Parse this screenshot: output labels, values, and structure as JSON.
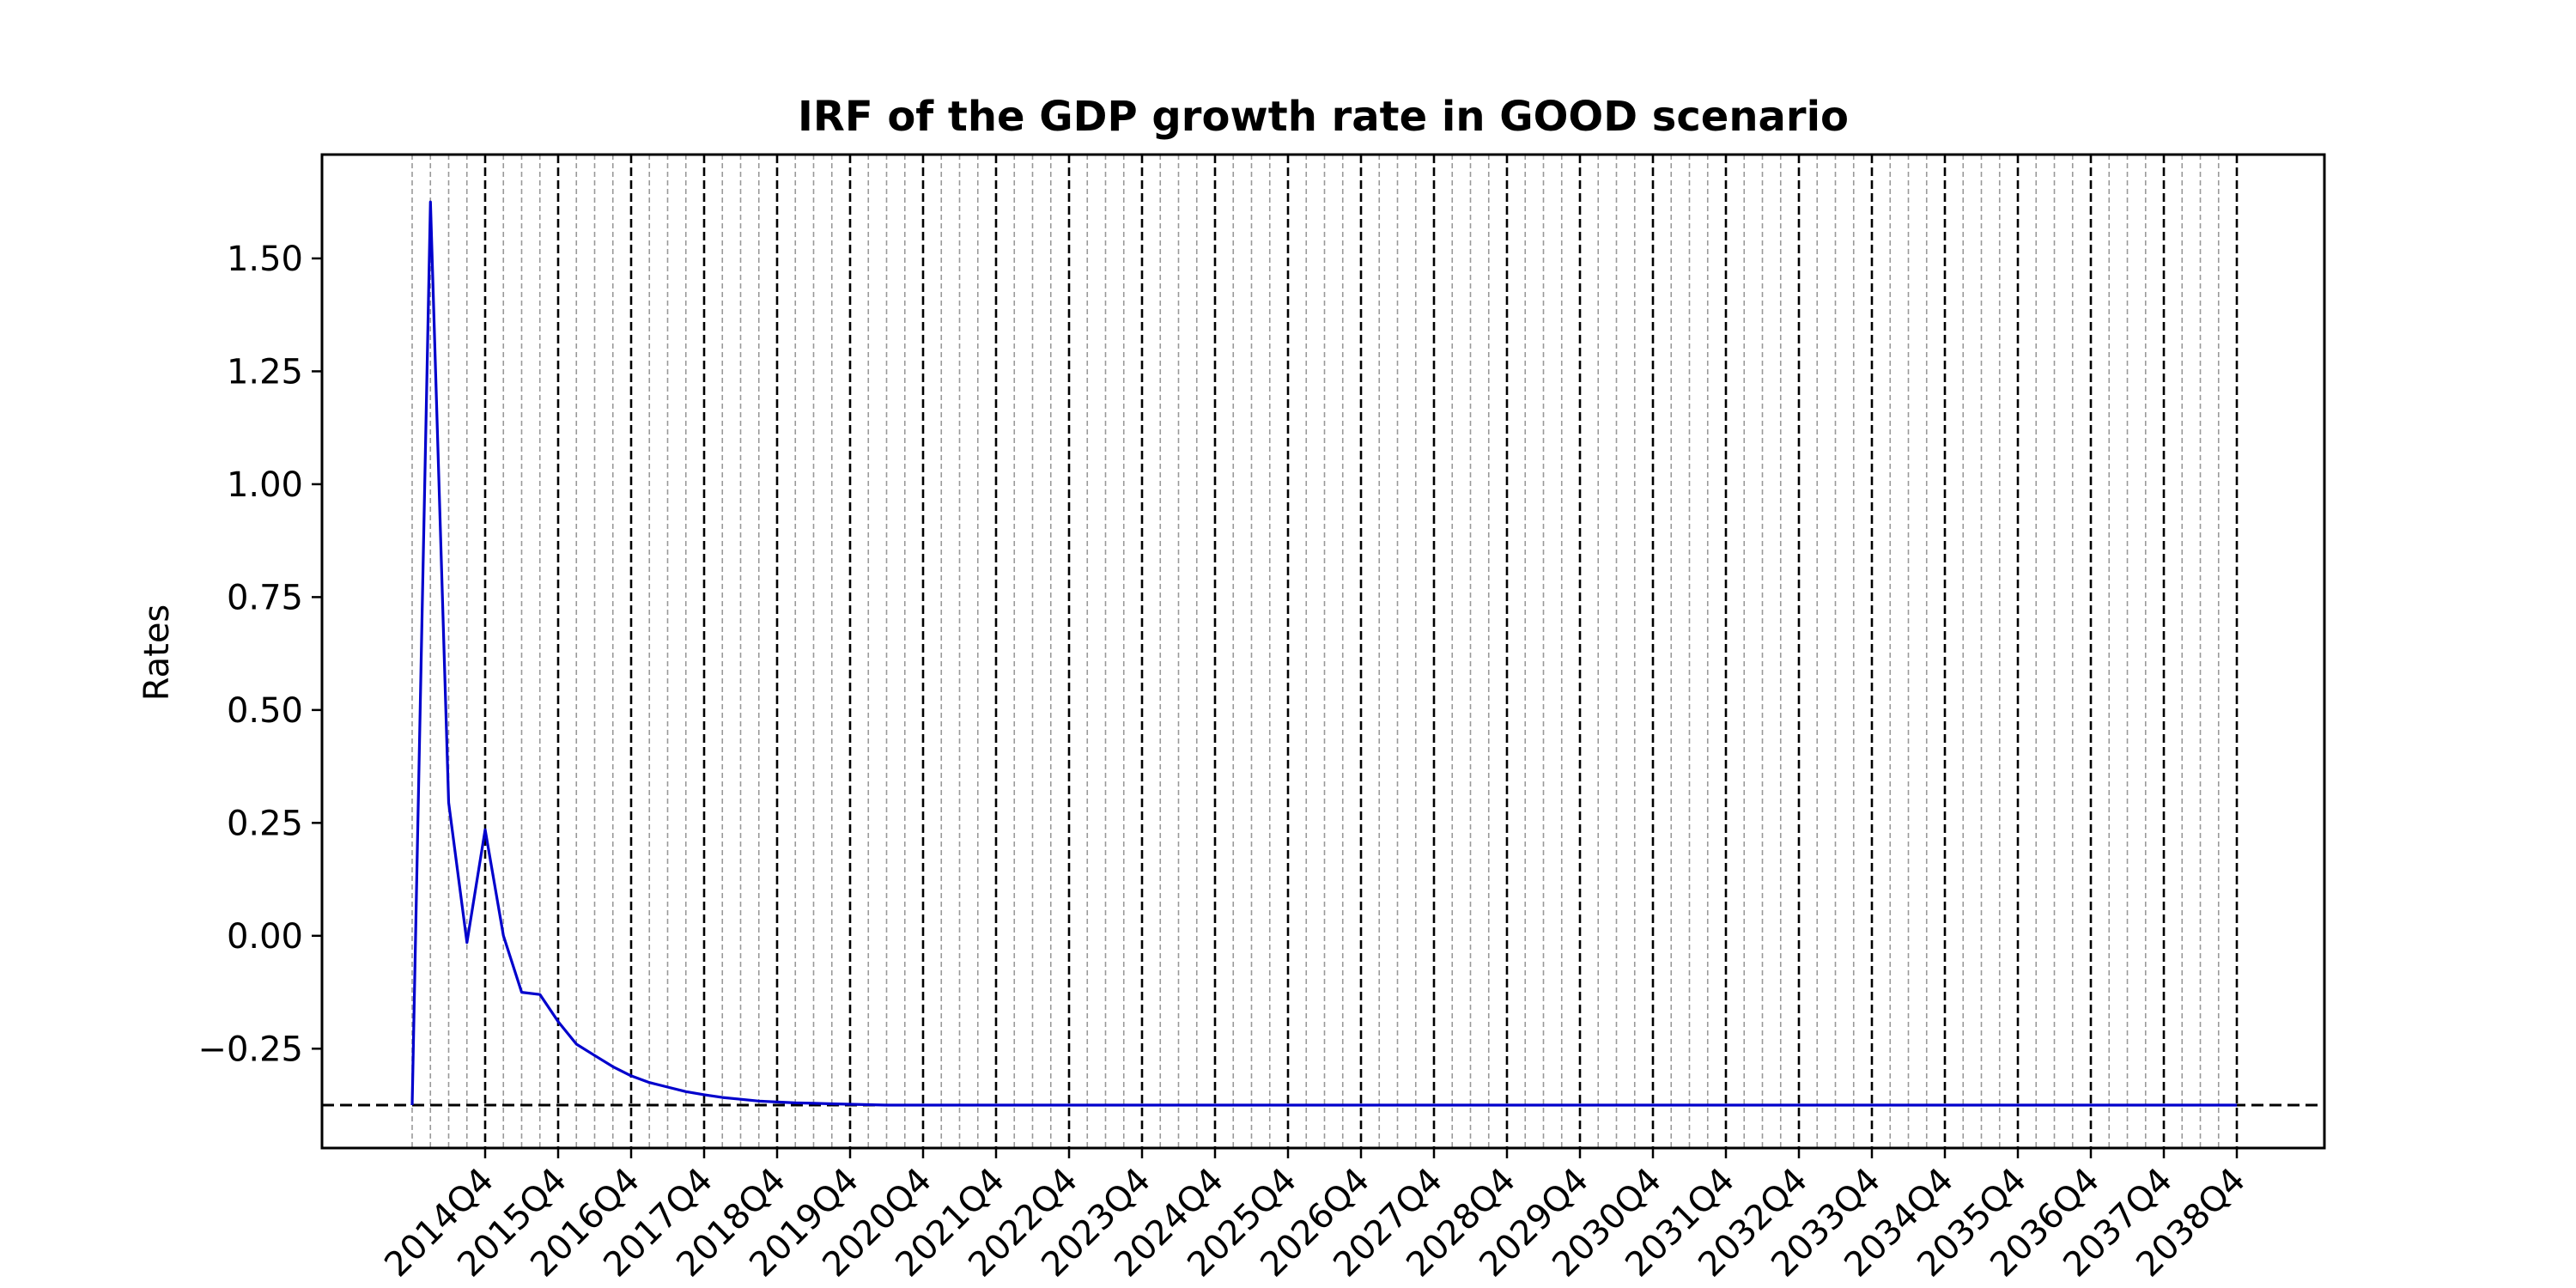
{
  "chart_data": {
    "type": "line",
    "title": "IRF of the GDP growth rate in GOOD scenario",
    "xlabel": "",
    "ylabel": "Rates",
    "x_start": "2013Q4",
    "x_end": "2038Q4",
    "xtick_labels": [
      "2014Q4",
      "2015Q4",
      "2016Q4",
      "2017Q4",
      "2018Q4",
      "2019Q4",
      "2020Q4",
      "2021Q4",
      "2022Q4",
      "2023Q4",
      "2024Q4",
      "2025Q4",
      "2026Q4",
      "2027Q4",
      "2028Q4",
      "2029Q4",
      "2030Q4",
      "2031Q4",
      "2032Q4",
      "2033Q4",
      "2034Q4",
      "2035Q4",
      "2036Q4",
      "2037Q4",
      "2038Q4"
    ],
    "ytick_labels": [
      "1.50",
      "1.25",
      "1.00",
      "0.75",
      "0.50",
      "0.25",
      "0.00",
      "−0.25"
    ],
    "ytick_values": [
      1.5,
      1.25,
      1.0,
      0.75,
      0.5,
      0.25,
      0.0,
      -0.25
    ],
    "ylim": [
      -0.47,
      1.73
    ],
    "baseline": -0.375,
    "grid": "vertical dashed lines at every quarter; darker at each Q4",
    "colors": {
      "line": "#0000cc",
      "baseline": "#000000",
      "minor_grid": "#999999",
      "major_grid": "#000000"
    },
    "series": [
      {
        "values": [
          -0.375,
          1.625,
          0.295,
          -0.015,
          0.235,
          0.0,
          -0.125,
          -0.13,
          -0.19,
          -0.24,
          -0.265,
          -0.29,
          -0.31,
          -0.325,
          -0.335,
          -0.345,
          -0.352,
          -0.358,
          -0.362,
          -0.366,
          -0.368,
          -0.37,
          -0.371,
          -0.372,
          -0.373,
          -0.374,
          -0.375
        ]
      }
    ]
  }
}
